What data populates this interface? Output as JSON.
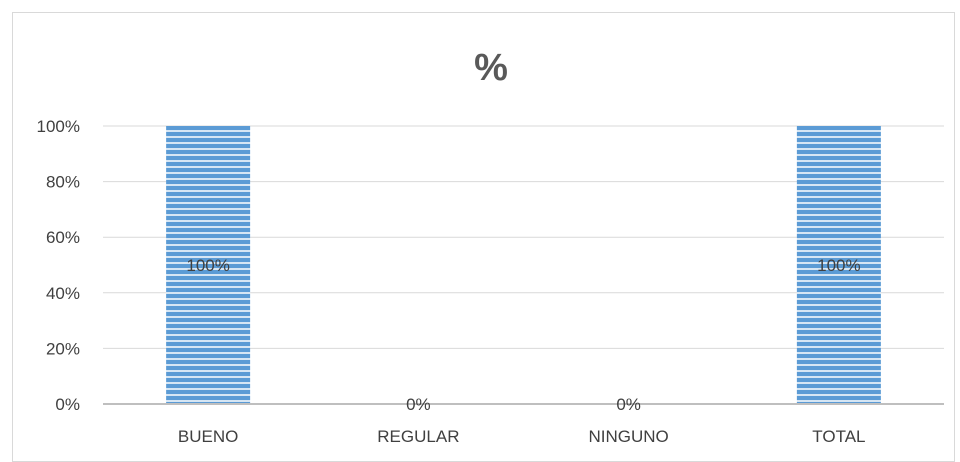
{
  "chart_data": {
    "type": "bar",
    "title": "%",
    "categories": [
      "BUENO",
      "REGULAR",
      "NINGUNO",
      "TOTAL"
    ],
    "values": [
      100,
      0,
      0,
      100
    ],
    "data_labels": [
      "100%",
      "0%",
      "0%",
      "100%"
    ],
    "y_ticks": [
      "0%",
      "20%",
      "40%",
      "60%",
      "80%",
      "100%"
    ],
    "ylim": [
      0,
      100
    ],
    "grid": true,
    "bar_color": "#5b9bd5",
    "bar_stripe_color": "#ffffff"
  }
}
